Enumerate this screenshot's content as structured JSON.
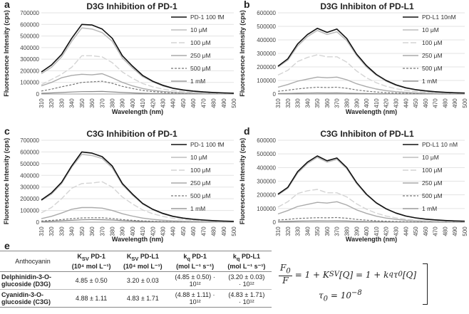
{
  "panel_letters": [
    "a",
    "b",
    "c",
    "d",
    "e"
  ],
  "chart_data": [
    {
      "type": "line",
      "panel": "a",
      "title": "D3G Inhibition of PD-1",
      "xlabel": "Wavelength (nm)",
      "ylabel": "Fluorescence Intensity (cps)",
      "xlim": [
        310,
        500
      ],
      "ylim": [
        0,
        700000
      ],
      "x_ticks": [
        310,
        320,
        330,
        340,
        350,
        360,
        370,
        380,
        390,
        400,
        410,
        420,
        430,
        440,
        450,
        460,
        470,
        480,
        490,
        500
      ],
      "y_ticks": [
        0,
        100000,
        200000,
        300000,
        400000,
        500000,
        600000,
        700000
      ],
      "x": [
        310,
        320,
        330,
        340,
        350,
        360,
        370,
        380,
        390,
        400,
        410,
        420,
        430,
        440,
        450,
        460,
        470,
        480,
        490,
        500
      ],
      "series": [
        {
          "name": "PD-1 100 fM",
          "color": "#111111",
          "dash": "solid",
          "width": 1.6,
          "values": [
            190000,
            250000,
            340000,
            480000,
            600000,
            595000,
            560000,
            480000,
            330000,
            240000,
            160000,
            110000,
            75000,
            50000,
            35000,
            25000,
            18000,
            13000,
            9000,
            7000
          ]
        },
        {
          "name": "10 μM",
          "color": "#bdbdbd",
          "dash": "solid",
          "width": 1.6,
          "values": [
            175000,
            230000,
            320000,
            455000,
            570000,
            560000,
            530000,
            455000,
            310000,
            225000,
            150000,
            105000,
            70000,
            47000,
            33000,
            23000,
            17000,
            12000,
            8500,
            6500
          ]
        },
        {
          "name": "100 μM",
          "color": "#d4d4d4",
          "dash": "8,3",
          "width": 1.4,
          "values": [
            80000,
            125000,
            170000,
            230000,
            330000,
            330000,
            320000,
            270000,
            190000,
            135000,
            90000,
            62000,
            42000,
            29000,
            20000,
            14000,
            10000,
            7500,
            5500,
            4200
          ]
        },
        {
          "name": "250 μM",
          "color": "#aaaaaa",
          "dash": "solid",
          "width": 1.4,
          "values": [
            70000,
            100000,
            140000,
            160000,
            170000,
            165000,
            175000,
            140000,
            100000,
            70000,
            47000,
            32000,
            22000,
            15000,
            10000,
            7500,
            5500,
            4000,
            3000,
            2400
          ]
        },
        {
          "name": "500 μM",
          "color": "#777777",
          "dash": "3,2",
          "width": 1.2,
          "values": [
            25000,
            42000,
            62000,
            80000,
            100000,
            105000,
            110000,
            92000,
            66000,
            47000,
            31000,
            21000,
            14000,
            10000,
            7000,
            5000,
            3700,
            2700,
            2000,
            1600
          ]
        },
        {
          "name": "1 mM",
          "color": "#888888",
          "dash": "solid",
          "width": 1.2,
          "values": [
            6000,
            9000,
            13000,
            17000,
            20000,
            21000,
            22000,
            18000,
            13000,
            9000,
            6000,
            4000,
            2800,
            2000,
            1400,
            1000,
            800,
            600,
            450,
            350
          ]
        }
      ]
    },
    {
      "type": "line",
      "panel": "b",
      "title": "D3G Inhibiton of PD-L1",
      "xlabel": "Wavelength (nm)",
      "ylabel": "Fluorescence Intensity (cps)",
      "xlim": [
        310,
        500
      ],
      "ylim": [
        0,
        600000
      ],
      "x_ticks": [
        310,
        320,
        330,
        340,
        350,
        360,
        370,
        380,
        390,
        400,
        410,
        420,
        430,
        440,
        450,
        460,
        470,
        480,
        490,
        500
      ],
      "y_ticks": [
        0,
        100000,
        200000,
        300000,
        400000,
        500000,
        600000
      ],
      "x": [
        310,
        320,
        330,
        340,
        350,
        360,
        370,
        380,
        390,
        400,
        410,
        420,
        430,
        440,
        450,
        460,
        470,
        480,
        490,
        500
      ],
      "series": [
        {
          "name": "PD-L1 10nM",
          "color": "#111111",
          "dash": "solid",
          "width": 1.6,
          "values": [
            205000,
            260000,
            370000,
            440000,
            485000,
            455000,
            480000,
            410000,
            295000,
            210000,
            145000,
            100000,
            68000,
            46000,
            32000,
            23000,
            17000,
            12000,
            9000,
            7000
          ]
        },
        {
          "name": "10 μM",
          "color": "#bdbdbd",
          "dash": "solid",
          "width": 1.6,
          "values": [
            200000,
            250000,
            355000,
            425000,
            470000,
            440000,
            460000,
            395000,
            285000,
            200000,
            140000,
            95000,
            65000,
            44000,
            31000,
            22000,
            16000,
            11500,
            8500,
            6500
          ]
        },
        {
          "name": "100 μM",
          "color": "#d4d4d4",
          "dash": "8,3",
          "width": 1.4,
          "values": [
            140000,
            175000,
            240000,
            270000,
            290000,
            275000,
            275000,
            235000,
            170000,
            120000,
            83000,
            57000,
            39000,
            27000,
            19000,
            13500,
            10000,
            7200,
            5300,
            4000
          ]
        },
        {
          "name": "250 μM",
          "color": "#aaaaaa",
          "dash": "solid",
          "width": 1.4,
          "values": [
            50000,
            70000,
            95000,
            110000,
            125000,
            120000,
            125000,
            105000,
            76000,
            54000,
            37000,
            25000,
            17000,
            12000,
            8300,
            6000,
            4400,
            3200,
            2400,
            1800
          ]
        },
        {
          "name": "500 μM",
          "color": "#777777",
          "dash": "3,2",
          "width": 1.2,
          "values": [
            20000,
            28000,
            38000,
            45000,
            50000,
            48000,
            50000,
            42000,
            30000,
            21000,
            15000,
            10000,
            7000,
            4800,
            3400,
            2400,
            1800,
            1300,
            950,
            700
          ]
        },
        {
          "name": "1 mM",
          "color": "#888888",
          "dash": "solid",
          "width": 1.2,
          "values": [
            3000,
            4000,
            6000,
            7000,
            8000,
            7500,
            8000,
            6500,
            4700,
            3300,
            2300,
            1600,
            1100,
            750,
            520,
            370,
            270,
            200,
            150,
            110
          ]
        }
      ]
    },
    {
      "type": "line",
      "panel": "c",
      "title": "C3G Inhibition of PD-1",
      "xlabel": "Wavelength (nm)",
      "ylabel": "Fluorescence Intensity (cps)",
      "xlim": [
        310,
        500
      ],
      "ylim": [
        0,
        700000
      ],
      "x_ticks": [
        310,
        320,
        330,
        340,
        350,
        360,
        370,
        380,
        390,
        400,
        410,
        420,
        430,
        440,
        450,
        460,
        470,
        480,
        490,
        500
      ],
      "y_ticks": [
        0,
        100000,
        200000,
        300000,
        400000,
        500000,
        600000,
        700000
      ],
      "x": [
        310,
        320,
        330,
        340,
        350,
        360,
        370,
        380,
        390,
        400,
        410,
        420,
        430,
        440,
        450,
        460,
        470,
        480,
        490,
        500
      ],
      "series": [
        {
          "name": "PD-1 100 fM",
          "color": "#111111",
          "dash": "solid",
          "width": 1.6,
          "values": [
            190000,
            250000,
            340000,
            480000,
            600000,
            590000,
            560000,
            480000,
            330000,
            240000,
            160000,
            110000,
            75000,
            50000,
            35000,
            25000,
            18000,
            13000,
            9000,
            7000
          ]
        },
        {
          "name": "10 μM",
          "color": "#bdbdbd",
          "dash": "solid",
          "width": 1.6,
          "values": [
            185000,
            240000,
            330000,
            470000,
            580000,
            570000,
            545000,
            465000,
            320000,
            232000,
            155000,
            107000,
            72000,
            48000,
            34000,
            24000,
            17500,
            12500,
            8700,
            6800
          ]
        },
        {
          "name": "100 μM",
          "color": "#d4d4d4",
          "dash": "8,3",
          "width": 1.4,
          "values": [
            80000,
            125000,
            200000,
            290000,
            330000,
            335000,
            345000,
            300000,
            215000,
            155000,
            105000,
            72000,
            49000,
            33000,
            23000,
            16500,
            12000,
            8700,
            6300,
            4900
          ]
        },
        {
          "name": "250 μM",
          "color": "#aaaaaa",
          "dash": "solid",
          "width": 1.4,
          "values": [
            30000,
            50000,
            78000,
            110000,
            125000,
            125000,
            120000,
            100000,
            72000,
            52000,
            35000,
            24000,
            16500,
            11000,
            7800,
            5600,
            4100,
            3000,
            2200,
            1700
          ]
        },
        {
          "name": "500 μM",
          "color": "#777777",
          "dash": "3,2",
          "width": 1.2,
          "values": [
            10000,
            15000,
            22000,
            30000,
            36000,
            38000,
            37000,
            31000,
            22000,
            16000,
            11000,
            7500,
            5100,
            3500,
            2400,
            1750,
            1300,
            950,
            700,
            550
          ]
        },
        {
          "name": "1 mM",
          "color": "#888888",
          "dash": "solid",
          "width": 1.2,
          "values": [
            5000,
            8000,
            12000,
            16000,
            20000,
            22000,
            21000,
            18000,
            13000,
            9300,
            6300,
            4300,
            3000,
            2000,
            1400,
            1000,
            750,
            550,
            400,
            320
          ]
        }
      ]
    },
    {
      "type": "line",
      "panel": "d",
      "title": "C3G Inhibiton of PD-L1",
      "xlabel": "Wavelength (nm)",
      "ylabel": "Fluorescence Intensity (cps)",
      "xlim": [
        310,
        500
      ],
      "ylim": [
        0,
        600000
      ],
      "x_ticks": [
        310,
        320,
        330,
        340,
        350,
        360,
        370,
        380,
        390,
        400,
        410,
        420,
        430,
        440,
        450,
        460,
        470,
        480,
        490,
        500
      ],
      "y_ticks": [
        0,
        100000,
        200000,
        300000,
        400000,
        500000,
        600000
      ],
      "x": [
        310,
        320,
        330,
        340,
        350,
        360,
        370,
        380,
        390,
        400,
        410,
        420,
        430,
        440,
        450,
        460,
        470,
        480,
        490,
        500
      ],
      "series": [
        {
          "name": "PD-L1 10 nM",
          "color": "#111111",
          "dash": "solid",
          "width": 1.6,
          "values": [
            205000,
            255000,
            370000,
            440000,
            485000,
            450000,
            470000,
            400000,
            290000,
            205000,
            142000,
            98000,
            67000,
            45000,
            31500,
            22500,
            16500,
            12000,
            8800,
            6800
          ]
        },
        {
          "name": "10 μM",
          "color": "#bdbdbd",
          "dash": "solid",
          "width": 1.6,
          "values": [
            200000,
            248000,
            360000,
            430000,
            475000,
            440000,
            460000,
            392000,
            283000,
            200000,
            139000,
            96000,
            65000,
            44000,
            31000,
            22000,
            16000,
            11700,
            8600,
            6600
          ]
        },
        {
          "name": "100 μM",
          "color": "#d4d4d4",
          "dash": "8,3",
          "width": 1.4,
          "values": [
            110000,
            150000,
            210000,
            230000,
            240000,
            215000,
            215000,
            185000,
            134000,
            95000,
            66000,
            45000,
            31000,
            21000,
            14800,
            10600,
            7800,
            5700,
            4200,
            3200
          ]
        },
        {
          "name": "250 μM",
          "color": "#aaaaaa",
          "dash": "solid",
          "width": 1.4,
          "values": [
            60000,
            85000,
            115000,
            130000,
            145000,
            140000,
            150000,
            125000,
            90000,
            64000,
            44000,
            30000,
            21000,
            14300,
            10000,
            7200,
            5300,
            3900,
            2900,
            2200
          ]
        },
        {
          "name": "500 μM",
          "color": "#777777",
          "dash": "3,2",
          "width": 1.2,
          "values": [
            15000,
            20000,
            27000,
            30000,
            33000,
            32000,
            34000,
            28500,
            20500,
            14500,
            10000,
            6900,
            4700,
            3200,
            2300,
            1650,
            1200,
            880,
            650,
            500
          ]
        },
        {
          "name": "1 mM",
          "color": "#888888",
          "dash": "solid",
          "width": 1.2,
          "values": [
            4000,
            6000,
            8000,
            9000,
            10000,
            9500,
            10000,
            8500,
            6100,
            4300,
            3000,
            2050,
            1400,
            950,
            670,
            480,
            350,
            260,
            190,
            150
          ]
        }
      ]
    }
  ],
  "table": {
    "headers": [
      {
        "main": "Anthocyanin",
        "sub": ""
      },
      {
        "main": "K",
        "subscript": "SV",
        "rest": " PD-1",
        "sub": "(10⁴ mol L⁻¹)"
      },
      {
        "main": "K",
        "subscript": "SV",
        "rest": " PD-L1",
        "sub": "(10⁴ mol L⁻¹)"
      },
      {
        "main": "k",
        "subscript": "q",
        "rest": " PD-1",
        "sub": "(mol L⁻¹ s⁻¹)"
      },
      {
        "main": "k",
        "subscript": "q",
        "rest": " PD-L1",
        "sub": "(mol L⁻¹ s⁻¹)"
      }
    ],
    "rows": [
      {
        "name_line1": "Delphinidin-3-O-",
        "name_line2": "glucoside (D3G)",
        "ksv_pd1": "4.85 ± 0.50",
        "ksv_pdl1": "3.20 ± 0.03",
        "kq_pd1_l1": "(4.85 ± 0.50) ·",
        "kq_pd1_l2": "10¹²",
        "kq_pdl1_l1": "(3.20 ± 0.03)",
        "kq_pdl1_l2": "· 10¹²"
      },
      {
        "name_line1": "Cyanidin-3-O-",
        "name_line2": "glucoside (C3G)",
        "ksv_pd1": "4.88 ± 1.11",
        "ksv_pdl1": "4.83 ± 1.71",
        "kq_pd1_l1": "(4.88 ± 1.11) ·",
        "kq_pd1_l2": "10¹²",
        "kq_pdl1_l1": "(4.83 ± 1.71)",
        "kq_pdl1_l2": "· 10¹²"
      }
    ]
  },
  "equations": {
    "f0": "F",
    "f0_sub": "0",
    "f": "F",
    "rhs1": "= 1 + K",
    "rhs1_sub": "SV",
    "rhs1_tail": "[Q] = 1 + k",
    "rhs1_sub2": "q",
    "rhs1_tau": "τ",
    "rhs1_tau_sub": "0",
    "rhs1_end": "[Q]",
    "tau": "τ",
    "tau_sub": "0",
    "tau_rhs": " = 10",
    "tau_exp": "−8"
  }
}
